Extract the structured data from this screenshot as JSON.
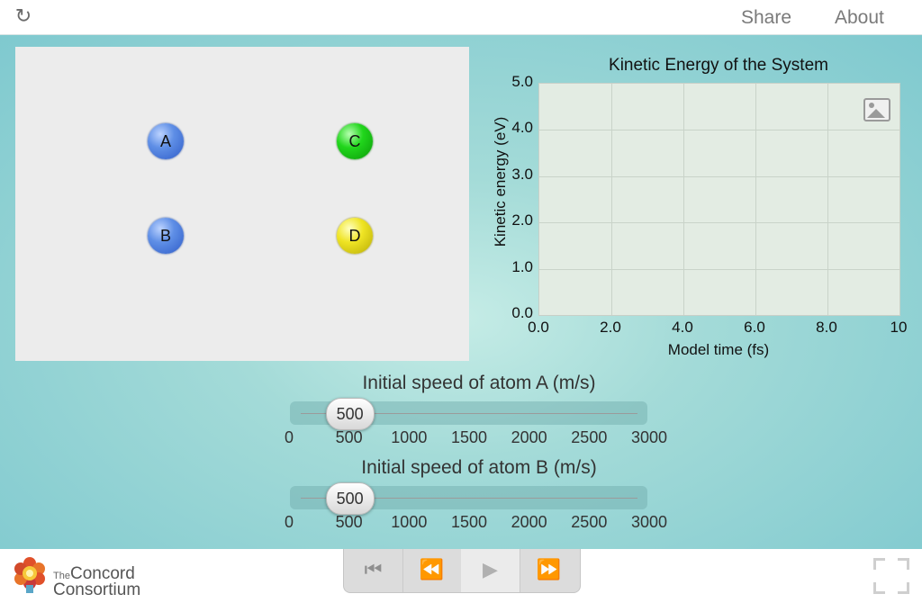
{
  "topbar": {
    "share_label": "Share",
    "about_label": "About",
    "reload_icon": "reload-icon"
  },
  "model": {
    "atoms": [
      {
        "label": "A",
        "color": "#4a78d8"
      },
      {
        "label": "B",
        "color": "#4a78d8"
      },
      {
        "label": "C",
        "color": "#1ec41a"
      },
      {
        "label": "D",
        "color": "#e6dc1e"
      }
    ]
  },
  "chart_data": {
    "type": "line",
    "title": "Kinetic Energy of the System",
    "xlabel": "Model time (fs)",
    "ylabel": "Kinetic energy (eV)",
    "xlim": [
      0,
      10
    ],
    "ylim": [
      0,
      5
    ],
    "x_ticks": [
      "0.0",
      "2.0",
      "4.0",
      "6.0",
      "8.0",
      "10"
    ],
    "y_ticks": [
      "0.0",
      "1.0",
      "2.0",
      "3.0",
      "4.0",
      "5.0"
    ],
    "grid": true,
    "series": []
  },
  "sliders": [
    {
      "title": "Initial speed of atom A (m/s)",
      "value": "500",
      "min": 0,
      "max": 3000,
      "ticks": [
        "0",
        "500",
        "1000",
        "1500",
        "2000",
        "2500",
        "3000"
      ]
    },
    {
      "title": "Initial speed of atom B (m/s)",
      "value": "500",
      "min": 0,
      "max": 3000,
      "ticks": [
        "0",
        "500",
        "1000",
        "1500",
        "2000",
        "2500",
        "3000"
      ]
    }
  ],
  "footer": {
    "logo_the": "The",
    "logo_line1": "Concord",
    "logo_line2": "Consortium",
    "controls": [
      "reset-to-start",
      "step-back",
      "play",
      "step-forward"
    ]
  }
}
